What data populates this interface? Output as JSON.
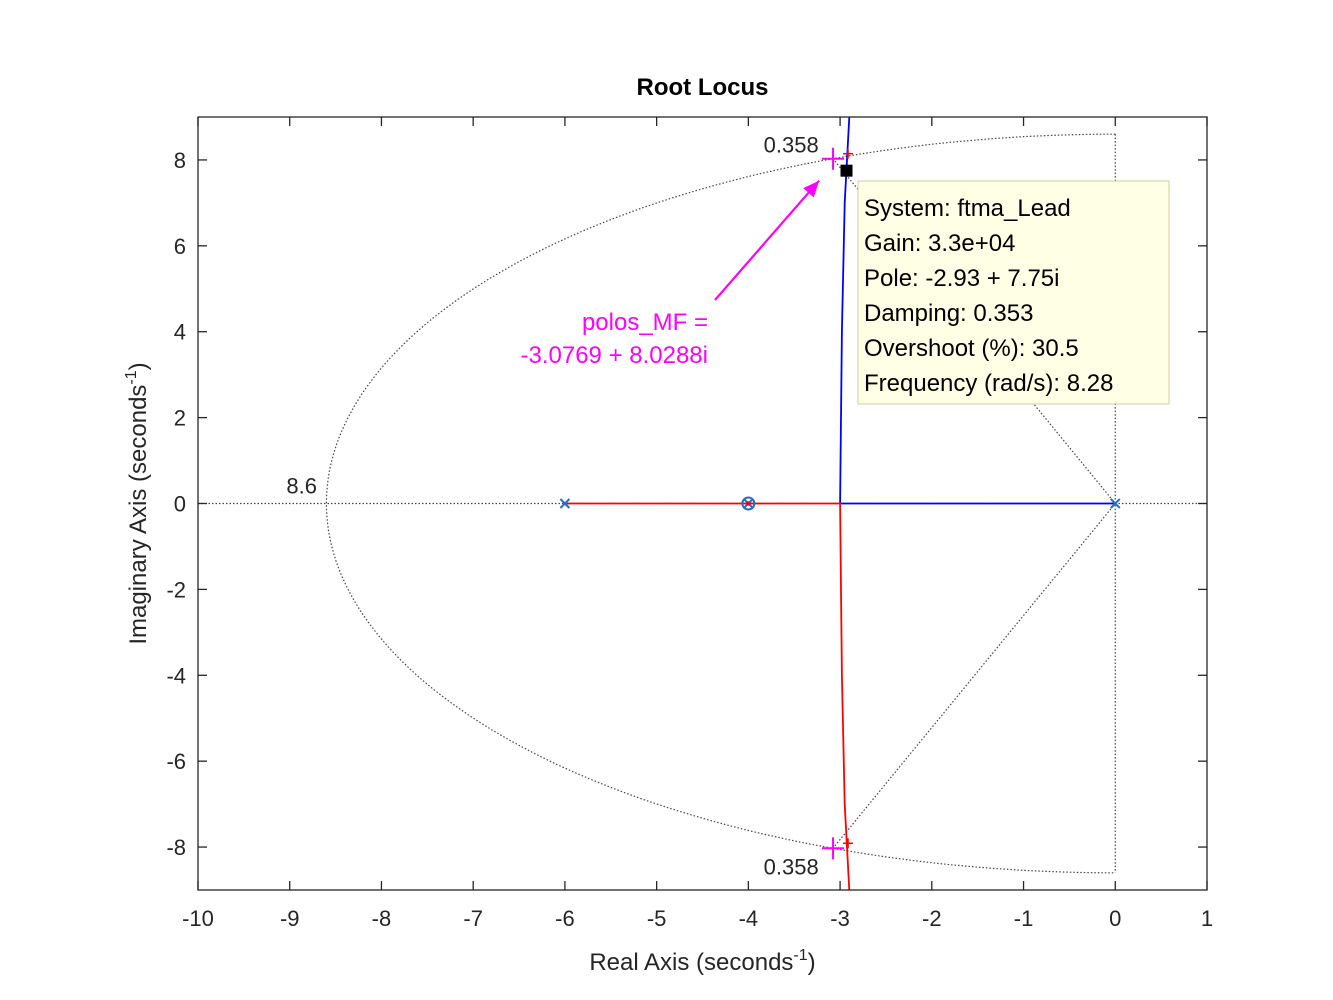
{
  "chart_data": {
    "type": "scatter",
    "title": "Root Locus",
    "xlabel": {
      "base": "Real Axis (seconds",
      "sup": "-1",
      "close": ")"
    },
    "ylabel": {
      "base": "Imaginary Axis (seconds",
      "sup": "-1",
      "close": ")"
    },
    "xlim": [
      -10,
      1
    ],
    "ylim": [
      -9,
      9
    ],
    "xticks": [
      -10,
      -9,
      -8,
      -7,
      -6,
      -5,
      -4,
      -3,
      -2,
      -1,
      0,
      1
    ],
    "yticks": [
      -8,
      -6,
      -4,
      -2,
      0,
      2,
      4,
      6,
      8
    ],
    "grid": "sgrid",
    "colors": {
      "branch1": "#0000ff",
      "branch2": "#ff0000",
      "marker": "#2a6fbf",
      "annotation": "#ff00ff",
      "grid": "#444444"
    },
    "poles": [
      {
        "x": 0,
        "y": 0
      },
      {
        "x": -6,
        "y": 0
      },
      {
        "x": -4,
        "y": 0
      }
    ],
    "zeros": [
      {
        "x": -4,
        "y": 0
      }
    ],
    "branches": [
      {
        "color": "#0000ff",
        "points": [
          [
            0,
            0
          ],
          [
            -3,
            0
          ],
          [
            -2.98,
            4
          ],
          [
            -2.95,
            7
          ],
          [
            -2.9,
            9
          ]
        ]
      },
      {
        "color": "#ff0000",
        "points": [
          [
            -6,
            0
          ],
          [
            -3,
            0
          ],
          [
            -2.98,
            -4
          ],
          [
            -2.95,
            -7
          ],
          [
            -2.9,
            -9
          ]
        ]
      }
    ],
    "grid_labels": [
      {
        "text": "8.6",
        "x": -8.6,
        "y": 0
      },
      {
        "text": "0.358",
        "x": -3.07,
        "y": 8.03
      },
      {
        "text": "0.358",
        "x": -3.07,
        "y": -8.03
      }
    ],
    "sgrid": {
      "wn": 8.6,
      "zeta": 0.358
    },
    "design_points": [
      {
        "x": -3.0769,
        "y": 8.0288
      },
      {
        "x": -3.0769,
        "y": -8.0288
      }
    ],
    "annotation": {
      "lines": [
        "polos_MF =",
        "-3.0769 + 8.0288i"
      ],
      "target": {
        "x": -3.0769,
        "y": 8.0288
      }
    },
    "datatip": {
      "point": {
        "x": -2.93,
        "y": 7.75
      },
      "lines": [
        "System: ftma_Lead",
        "Gain: 3.3e+04",
        "Pole: -2.93 + 7.75i",
        "Damping: 0.353",
        "Overshoot (%): 30.5",
        "Frequency (rad/s): 8.28"
      ]
    }
  }
}
